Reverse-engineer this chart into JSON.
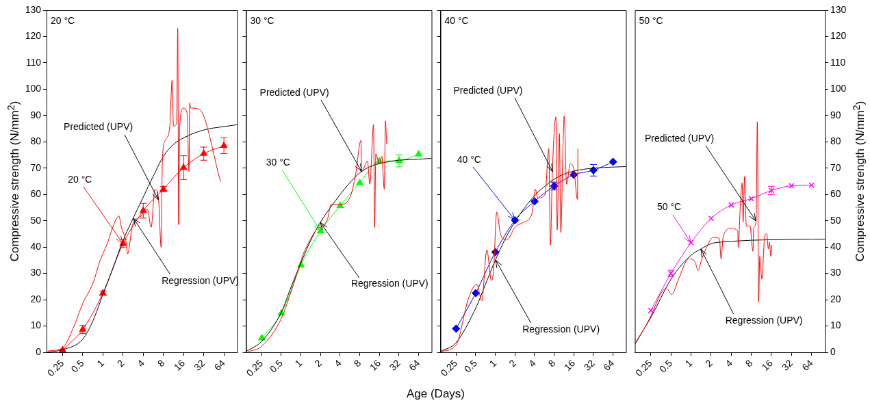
{
  "chart_data": [
    {
      "type": "line",
      "title": "20 °C",
      "ylabel": "Compressive strength (N/mm$^{2}$)",
      "log": "x",
      "xlim": [
        0.144,
        101
      ],
      "xticks": [
        0.25,
        0.5,
        1,
        2,
        4,
        8,
        16,
        32,
        64
      ],
      "ylim": [
        0,
        130
      ],
      "yticks": [
        0,
        10,
        20,
        30,
        40,
        50,
        60,
        70,
        80,
        90,
        100,
        110,
        120,
        130
      ],
      "annotations": [
        {
          "text": "Predicted (UPV)",
          "x": 6.77,
          "y": 58.1
        },
        {
          "text": "Regression (UPV)",
          "x": 2.83,
          "y": 51
        }
      ],
      "series": [
        {
          "color": "#ff0000",
          "marker": "none",
          "x": [
            0.15,
            0.25,
            0.357,
            0.5,
            0.71,
            0.91,
            1.18,
            1.4,
            1.73,
            1.89,
            2.24,
            2.33,
            2.77,
            3.58,
            4.62,
            5.25,
            5.96,
            6.77,
            7.4,
            7.7,
            8.4,
            9.9,
            10.8,
            11.3,
            12.6,
            13.1,
            13.5,
            14,
            15.9,
            18.1,
            19.3,
            19.7,
            20.5,
            21.4,
            27.7,
            57
          ],
          "values": [
            0.5,
            1.7,
            9,
            18.6,
            26.3,
            35,
            41.8,
            47.5,
            51.8,
            47.5,
            41.3,
            37.4,
            48.5,
            51.4,
            54.3,
            47.5,
            62,
            58.1,
            39.8,
            71.6,
            80.3,
            85.1,
            103.4,
            86,
            87,
            123.1,
            48.5,
            86,
            92.8,
            90.8,
            68.7,
            94.7,
            92.8,
            92.8,
            92.3,
            64.9
          ]
        },
        {
          "color": "#000000",
          "marker": "none",
          "x": [
            0.144,
            0.25,
            0.5,
            0.71,
            1,
            1.41,
            2,
            2.83,
            4,
            5.66,
            8,
            11.3,
            16,
            32,
            64,
            101
          ],
          "values": [
            0,
            1,
            5,
            12,
            22,
            32,
            42.5,
            51,
            59,
            67,
            74.5,
            79,
            81.5,
            84.5,
            85.8,
            86.5
          ]
        },
        {
          "name": "20 °C",
          "color": "#ff0000",
          "marker": "triangle",
          "x": [
            0.25,
            0.5,
            1,
            2,
            4,
            8,
            16,
            32,
            64
          ],
          "values": [
            0.8,
            8.7,
            22.5,
            41.3,
            53.8,
            62,
            70.2,
            75.5,
            78.5
          ],
          "errors": [
            null,
            1.5,
            0.8,
            1.5,
            2.8,
            1,
            4.5,
            2.5,
            3
          ]
        }
      ]
    },
    {
      "type": "line",
      "title": "30 °C",
      "xlabel": "Age (Days)",
      "log": "x",
      "tick_labels": "x",
      "xlim": [
        0.144,
        101
      ],
      "xticks": [
        0.25,
        0.5,
        1,
        2,
        4,
        8,
        16,
        32,
        64
      ],
      "ylim": [
        0,
        130
      ],
      "yticks": [
        0,
        10,
        20,
        30,
        40,
        50,
        60,
        70,
        80,
        90,
        100,
        110,
        120,
        130
      ],
      "annotations": [
        {
          "text": "Predicted (UPV)",
          "x": 8.5,
          "y": 68.7
        },
        {
          "text": "Regression (UPV)",
          "x": 2,
          "y": 49.5
        }
      ],
      "series": [
        {
          "color": "#ff0000",
          "marker": "none",
          "x": [
            0.153,
            0.25,
            0.5,
            0.76,
            1.07,
            1.38,
            1.78,
            2.29,
            2.6,
            2.88,
            4.14,
            5.8,
            6.87,
            8.35,
            8.5,
            10.5,
            11.4,
            13,
            13.5,
            14.1,
            16,
            17.4,
            19,
            19.8,
            20.6
          ],
          "values": [
            0.2,
            2.3,
            12.9,
            25.4,
            36.9,
            42.7,
            47,
            48.5,
            51.3,
            56.2,
            56.2,
            59.6,
            67.3,
            80.6,
            68.7,
            72.6,
            63.9,
            86.5,
            47.5,
            75.5,
            71.6,
            74.5,
            62,
            88,
            79.3
          ]
        },
        {
          "color": "#000000",
          "marker": "none",
          "x": [
            0.144,
            0.25,
            0.5,
            0.71,
            1,
            1.41,
            2,
            2.83,
            4,
            5.66,
            8,
            11.3,
            16,
            32,
            64,
            101
          ],
          "values": [
            0.3,
            4.2,
            15.2,
            25,
            34,
            42.5,
            49.5,
            55,
            60,
            64.5,
            68.2,
            70.5,
            71.7,
            73,
            73.4,
            73.7
          ]
        },
        {
          "name": "30 °C",
          "color": "#00ff00",
          "marker": "triangle",
          "x": [
            0.25,
            0.5,
            1,
            2,
            4,
            8,
            16,
            32,
            64
          ],
          "values": [
            5.4,
            14.8,
            33.1,
            46.1,
            55.7,
            64.4,
            72.6,
            72.8,
            75.3
          ],
          "errors": [
            null,
            null,
            null,
            null,
            null,
            null,
            null,
            2.3,
            null
          ]
        }
      ]
    },
    {
      "type": "line",
      "title": "40 °C",
      "log": "x",
      "tick_labels": "x",
      "xlim": [
        0.144,
        101
      ],
      "xticks": [
        0.25,
        0.5,
        1,
        2,
        4,
        8,
        16,
        32,
        64
      ],
      "ylim": [
        0,
        130
      ],
      "yticks": [
        0,
        10,
        20,
        30,
        40,
        50,
        60,
        70,
        80,
        90,
        100,
        110,
        120,
        130
      ],
      "annotations": [
        {
          "text": "Predicted (UPV)",
          "x": 7.5,
          "y": 68.7
        },
        {
          "text": "Regression (UPV)",
          "x": 1,
          "y": 35
        }
      ],
      "series": [
        {
          "color": "#ff0000",
          "marker": "none",
          "x": [
            0.147,
            0.25,
            0.388,
            0.52,
            0.62,
            0.74,
            0.87,
            0.94,
            1.05,
            1.21,
            1.5,
            2.0,
            2.7,
            3.65,
            4.1,
            4.5,
            5.8,
            6.6,
            7.0,
            7.5,
            8.5,
            8.9,
            9.6,
            10.1,
            10.9,
            11.4,
            12.4,
            14.1,
            16,
            18.2,
            18.5
          ],
          "values": [
            0.3,
            2.8,
            20.6,
            25.9,
            19.6,
            38.9,
            27.3,
            31.1,
            53.3,
            44.6,
            42.7,
            47.5,
            49.4,
            52.8,
            62,
            58.6,
            60,
            77.4,
            40.8,
            68.7,
            89.5,
            46.6,
            83.1,
            45.6,
            77.4,
            89.9,
            63.9,
            71.6,
            69.7,
            58.1,
            77.4
          ]
        },
        {
          "color": "#000000",
          "marker": "none",
          "x": [
            0.144,
            0.25,
            0.5,
            0.71,
            1,
            1.41,
            2,
            2.83,
            4,
            5.66,
            8,
            11.3,
            16,
            32,
            64,
            101
          ],
          "values": [
            0.3,
            3.7,
            16.8,
            26,
            35,
            43,
            49.6,
            55,
            59.6,
            63,
            65.8,
            67.7,
            68.9,
            70,
            70.4,
            70.6
          ]
        },
        {
          "name": "40 °C",
          "color": "#0000ff",
          "marker": "diamond",
          "x": [
            0.25,
            0.5,
            1,
            2,
            4,
            8,
            16,
            32,
            64
          ],
          "values": [
            9,
            22.5,
            38.1,
            50.2,
            57.4,
            63.2,
            67.5,
            69.2,
            72.4
          ],
          "errors": [
            null,
            null,
            null,
            null,
            null,
            1.5,
            null,
            2.2,
            null
          ]
        }
      ]
    },
    {
      "type": "line",
      "title": "50 °C",
      "ylabel": "Compressive strength (N/mm$^{2}$)",
      "log": "x",
      "xlim": [
        0.144,
        101
      ],
      "xticks": [
        0.25,
        0.5,
        1,
        2,
        4,
        8,
        16,
        32,
        64
      ],
      "ylim": [
        0,
        130
      ],
      "yticks": [
        0,
        10,
        20,
        30,
        40,
        50,
        60,
        70,
        80,
        90,
        100,
        110,
        120,
        130
      ],
      "annotations": [
        {
          "text": "Predicted (UPV)",
          "x": 9.43,
          "y": 50
        },
        {
          "text": "Regression (UPV)",
          "x": 1.41,
          "y": 39.3
        }
      ],
      "series": [
        {
          "color": "#ff0000",
          "marker": "none",
          "x": [
            0.151,
            0.25,
            0.365,
            0.433,
            0.512,
            0.66,
            0.925,
            1.14,
            1.28,
            1.41,
            1.67,
            2.15,
            2.66,
            2.82,
            3.02,
            3.89,
            5.01,
            5.09,
            5.45,
            5.83,
            6.03,
            6.34,
            6.73,
            7.64,
            8.45,
            8.67,
            9.43,
            9.84,
            10.3,
            10.7,
            11.5,
            12.7,
            13.6,
            14.4,
            15,
            15.6,
            16.3
          ],
          "values": [
            3.7,
            13.8,
            23,
            24.1,
            22,
            28.3,
            35.5,
            34.5,
            31.1,
            34.5,
            39.3,
            43.7,
            43.2,
            35.5,
            43.7,
            47.1,
            46.1,
            39.8,
            54.8,
            64.4,
            49.5,
            66.8,
            48,
            48,
            38.4,
            47.1,
            50,
            87.6,
            19.1,
            36.5,
            27.8,
            44.2,
            45.1,
            39.3,
            41.8,
            36.5,
            40.8
          ]
        },
        {
          "color": "#000000",
          "marker": "none",
          "x": [
            0.144,
            0.25,
            0.5,
            0.71,
            1,
            1.41,
            2,
            2.83,
            4,
            5.66,
            8,
            11.3,
            16,
            32,
            64,
            101
          ],
          "values": [
            3.2,
            13.3,
            27.8,
            33,
            36.9,
            39.3,
            41.3,
            41.9,
            42.2,
            42.4,
            42.6,
            42.7,
            42.8,
            42.9,
            43,
            43
          ]
        },
        {
          "name": "50 °C",
          "color": "#ff00ff",
          "marker": "cross",
          "x": [
            0.25,
            0.5,
            1,
            2,
            4,
            8,
            16,
            32,
            64
          ],
          "values": [
            15.9,
            30,
            41.7,
            50.9,
            56,
            58.4,
            61.5,
            63.3,
            63.5
          ],
          "errors": [
            null,
            1.2,
            null,
            null,
            null,
            null,
            1.6,
            null,
            null
          ]
        }
      ]
    }
  ]
}
